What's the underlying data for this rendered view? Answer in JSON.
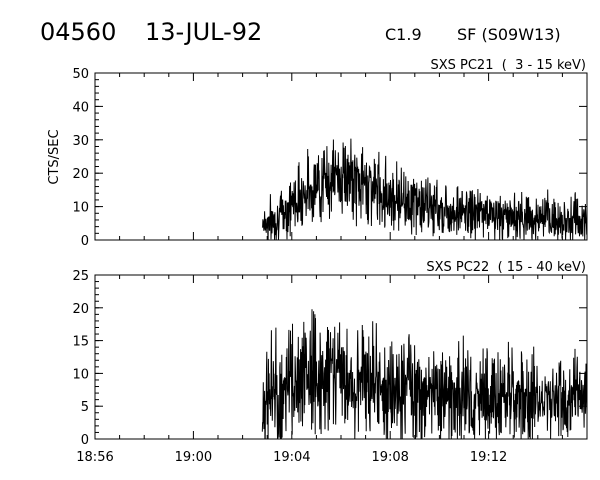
{
  "header": {
    "event_id": "04560",
    "date": "13-JUL-92",
    "flare_class": "C1.9",
    "location": "SF (S09W13)"
  },
  "chart_data": [
    {
      "type": "line",
      "title": "SXS PC21  (  3 - 15 keV)",
      "ylabel": "CTS/SEC",
      "xlabel": "",
      "xlim": [
        "18:56",
        "19:16"
      ],
      "ylim": [
        0,
        50
      ],
      "yticks": [
        "0",
        "10",
        "20",
        "30",
        "40",
        "50"
      ],
      "xticks": [],
      "grid": false,
      "series": [
        {
          "x": [
            "19:02.8",
            "19:03.0",
            "19:03.3",
            "19:03.5",
            "19:03.8",
            "19:04.0",
            "19:04.3",
            "19:04.6",
            "19:04.9",
            "19:05.2",
            "19:05.5",
            "19:05.8",
            "19:06.0",
            "19:06.3",
            "19:06.6",
            "19:06.9",
            "19:07.2",
            "19:07.5",
            "19:07.8",
            "19:08.1",
            "19:08.4",
            "19:08.7",
            "19:09.0",
            "19:09.4",
            "19:09.8",
            "19:10.2",
            "19:10.6",
            "19:11.0",
            "19:11.5",
            "19:12.0",
            "19:12.5",
            "19:13.0",
            "19:13.5",
            "19:14.0",
            "19:14.5",
            "19:15.0",
            "19:15.5",
            "19:16.0"
          ],
          "values": [
            6,
            5,
            6,
            7,
            9,
            11,
            13,
            15,
            16,
            17,
            18,
            19,
            19,
            18,
            17,
            17,
            16,
            15,
            14,
            13,
            13,
            12,
            11,
            10,
            10,
            9,
            9,
            8,
            8,
            8,
            7,
            7,
            7,
            6,
            6,
            6,
            6,
            5
          ]
        }
      ]
    },
    {
      "type": "line",
      "title": "SXS PC22  ( 15 - 40 keV)",
      "ylabel": "",
      "xlabel": "",
      "xlim": [
        "18:56",
        "19:16"
      ],
      "ylim": [
        0,
        25
      ],
      "yticks": [
        "0",
        "5",
        "10",
        "15",
        "20",
        "25"
      ],
      "xticks": [
        "18:56",
        "19:00",
        "19:04",
        "19:08",
        "19:12"
      ],
      "grid": false,
      "series": [
        {
          "x": [
            "19:02.8",
            "19:03.0",
            "19:03.3",
            "19:03.5",
            "19:03.8",
            "19:04.0",
            "19:04.3",
            "19:04.6",
            "19:04.9",
            "19:05.2",
            "19:05.5",
            "19:05.8",
            "19:06.0",
            "19:06.3",
            "19:06.6",
            "19:06.9",
            "19:07.2",
            "19:07.5",
            "19:07.8",
            "19:08.1",
            "19:08.4",
            "19:08.7",
            "19:09.0",
            "19:09.4",
            "19:09.8",
            "19:10.2",
            "19:10.6",
            "19:11.0",
            "19:11.5",
            "19:12.0",
            "19:12.5",
            "19:13.0",
            "19:13.5",
            "19:14.0",
            "19:14.5",
            "19:15.0",
            "19:15.5",
            "19:16.0"
          ],
          "values": [
            5,
            6,
            7,
            7,
            8,
            9,
            9,
            10,
            10,
            10,
            10,
            10,
            10,
            9,
            9,
            9,
            9,
            8,
            8,
            8,
            8,
            8,
            7,
            7,
            7,
            7,
            7,
            7,
            6,
            6,
            6,
            6,
            6,
            6,
            6,
            6,
            6,
            6
          ]
        }
      ]
    }
  ]
}
